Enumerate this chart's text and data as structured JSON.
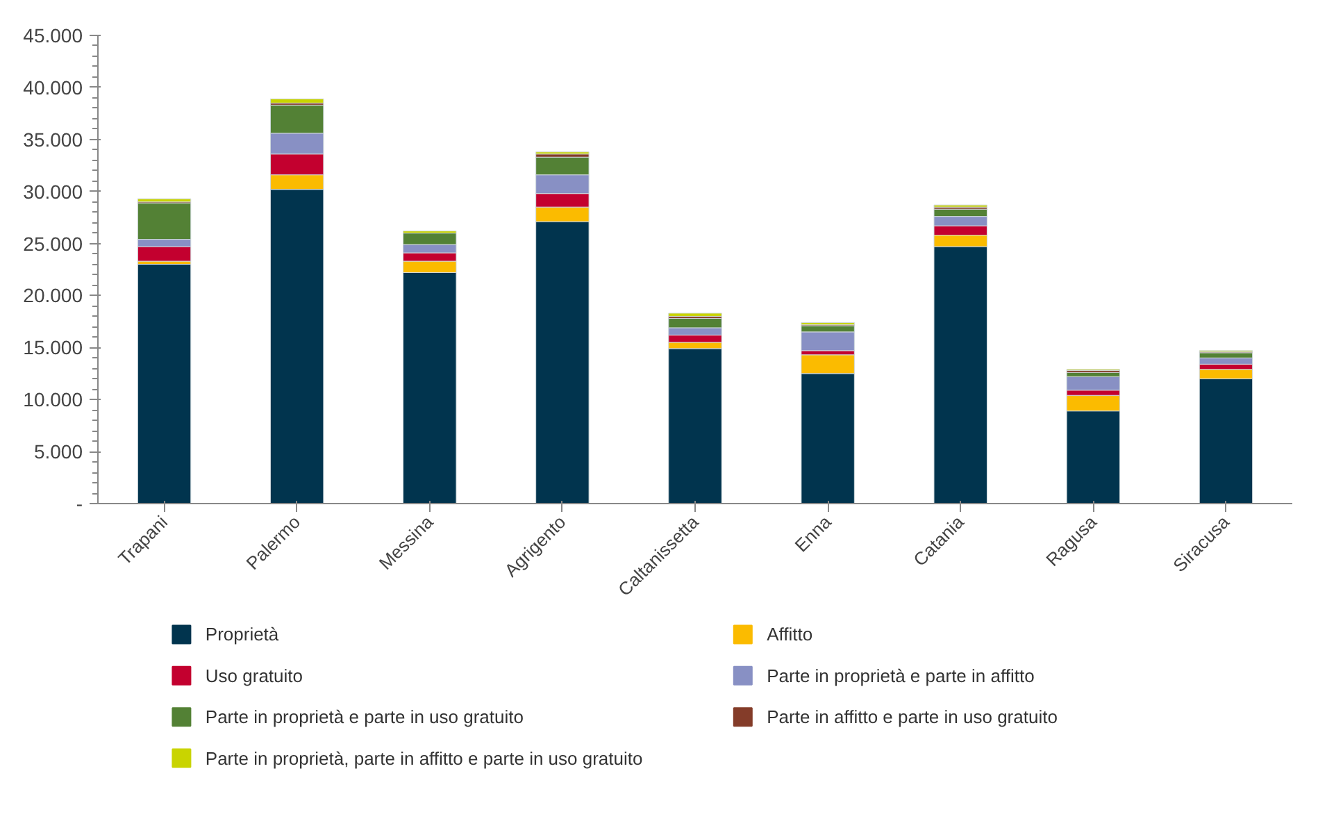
{
  "chart_data": {
    "type": "bar",
    "stacked": true,
    "categories": [
      "Trapani",
      "Palermo",
      "Messina",
      "Agrigento",
      "Caltanissetta",
      "Enna",
      "Catania",
      "Ragusa",
      "Siracusa"
    ],
    "series": [
      {
        "name": "Proprietà",
        "color": "#01344e",
        "values": [
          23000,
          30200,
          22200,
          27100,
          14900,
          12500,
          24700,
          8900,
          12000
        ]
      },
      {
        "name": "Affitto",
        "color": "#fbbb00",
        "values": [
          300,
          1400,
          1100,
          1400,
          600,
          1800,
          1100,
          1500,
          900
        ]
      },
      {
        "name": "Uso gratuito",
        "color": "#c3002f",
        "values": [
          1400,
          2000,
          800,
          1300,
          700,
          400,
          900,
          500,
          500
        ]
      },
      {
        "name": "Parte in proprietà e parte in affitto",
        "color": "#8890c4",
        "values": [
          700,
          2000,
          800,
          1800,
          700,
          1800,
          900,
          1300,
          600
        ]
      },
      {
        "name": "Parte in proprietà  e parte in uso gratuito",
        "color": "#538135",
        "values": [
          3500,
          2700,
          1100,
          1700,
          900,
          600,
          700,
          400,
          500
        ]
      },
      {
        "name": " Parte in affitto e parte in uso gratuito",
        "color": "#843c29",
        "values": [
          100,
          200,
          null,
          300,
          200,
          100,
          200,
          200,
          100
        ]
      },
      {
        "name": "Parte in proprietà, parte in affitto e parte in uso gratuito",
        "color": "#c9d400",
        "values": [
          300,
          400,
          200,
          200,
          300,
          200,
          200,
          100,
          100
        ]
      }
    ],
    "ylim": [
      0,
      45000
    ],
    "yticks": [
      {
        "value": 0,
        "label": "-"
      },
      {
        "value": 5000,
        "label": "5.000"
      },
      {
        "value": 10000,
        "label": "10.000"
      },
      {
        "value": 15000,
        "label": "15.000"
      },
      {
        "value": 20000,
        "label": "20.000"
      },
      {
        "value": 25000,
        "label": "25.000"
      },
      {
        "value": 30000,
        "label": "30.000"
      },
      {
        "value": 35000,
        "label": "35.000"
      },
      {
        "value": 40000,
        "label": "40.000"
      },
      {
        "value": 45000,
        "label": "45.000"
      }
    ],
    "grid": false,
    "legend": "bottom"
  }
}
